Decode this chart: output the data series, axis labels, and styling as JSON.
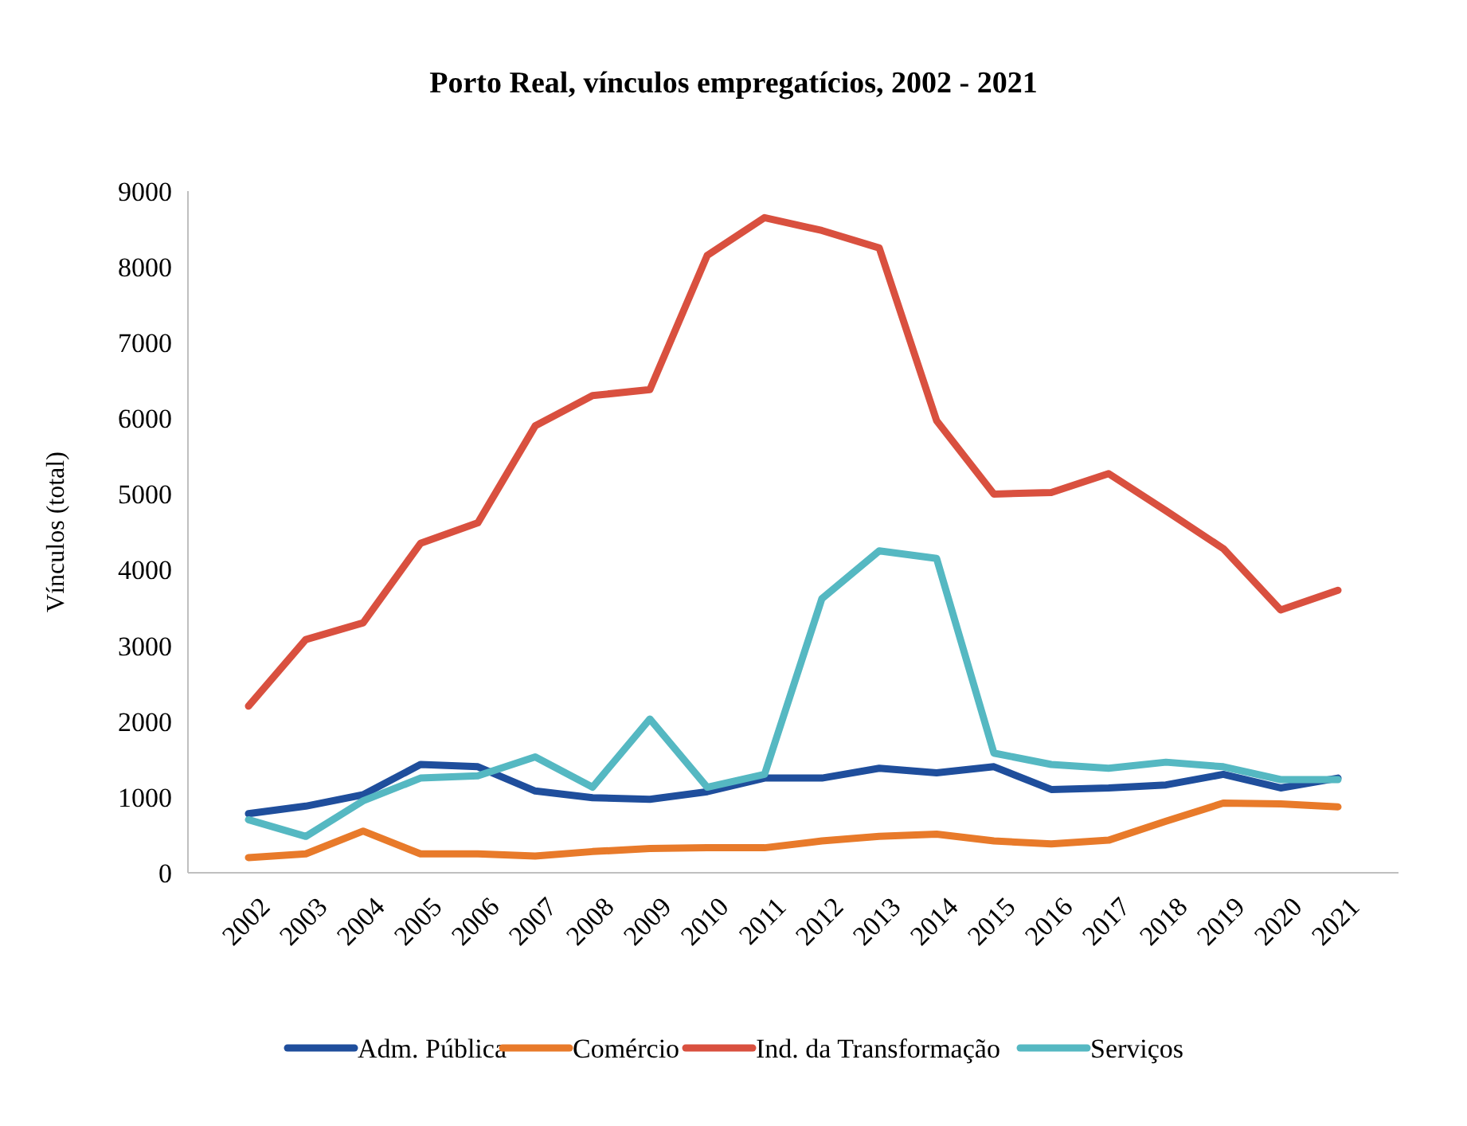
{
  "chart_data": {
    "type": "line",
    "title": "Porto Real, vínculos empregatícios, 2002 - 2021",
    "ylabel": "Vínculos  (total)",
    "categories": [
      "2002",
      "2003",
      "2004",
      "2005",
      "2006",
      "2007",
      "2008",
      "2009",
      "2010",
      "2011",
      "2012",
      "2013",
      "2014",
      "2015",
      "2016",
      "2017",
      "2018",
      "2019",
      "2020",
      "2021"
    ],
    "series": [
      {
        "name": "Adm. Pública",
        "color": "#1f4e9c",
        "values": [
          780,
          880,
          1030,
          1430,
          1400,
          1080,
          990,
          970,
          1070,
          1250,
          1250,
          1380,
          1320,
          1400,
          1100,
          1120,
          1160,
          1300,
          1120,
          1250
        ]
      },
      {
        "name": "Comércio",
        "color": "#e87a2a",
        "values": [
          200,
          250,
          550,
          250,
          250,
          220,
          280,
          320,
          330,
          330,
          420,
          480,
          510,
          420,
          380,
          430,
          680,
          920,
          910,
          870
        ]
      },
      {
        "name": "Ind. da Transformação",
        "color": "#d9503f",
        "values": [
          2200,
          3080,
          3300,
          4350,
          4620,
          5900,
          6300,
          6380,
          8150,
          8650,
          8480,
          8250,
          5970,
          5000,
          5020,
          5270,
          4780,
          4280,
          3470,
          3730
        ]
      },
      {
        "name": "Serviços",
        "color": "#55b8c2",
        "values": [
          700,
          480,
          950,
          1250,
          1280,
          1530,
          1130,
          2030,
          1130,
          1300,
          3620,
          4250,
          4150,
          1580,
          1430,
          1380,
          1460,
          1400,
          1230,
          1230
        ]
      }
    ],
    "ylim": [
      0,
      9000
    ],
    "yticks": [
      0,
      1000,
      2000,
      3000,
      4000,
      5000,
      6000,
      7000,
      8000,
      9000
    ],
    "grid": false,
    "legend": "bottom"
  }
}
